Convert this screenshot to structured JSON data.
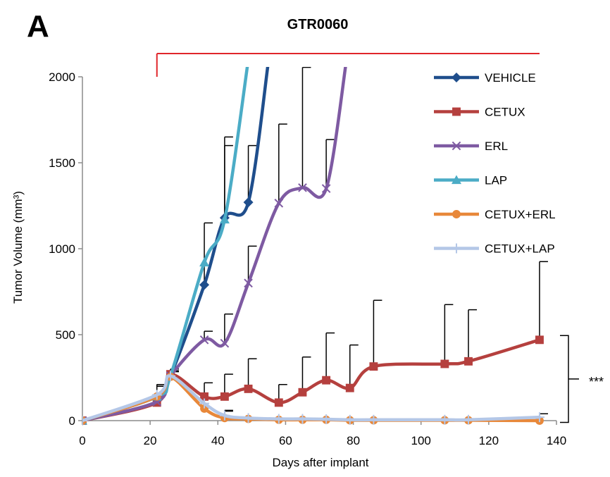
{
  "panel_letter": "A",
  "chart_data": {
    "type": "line",
    "title": "GTR0060",
    "xlabel": "Days after  implant",
    "ylabel": "Tumor Volume (mm³)",
    "xlim": [
      0,
      140
    ],
    "ylim": [
      0,
      2000
    ],
    "xticks": [
      0,
      20,
      40,
      60,
      80,
      100,
      120,
      140
    ],
    "yticks": [
      0,
      500,
      1000,
      1500,
      2000
    ],
    "grid": false,
    "legend_position": "top-right",
    "treatment_bar": {
      "x_start": 22,
      "x_end": 135,
      "color": "#e0262b"
    },
    "significance_label": "***",
    "series": [
      {
        "name": "VEHICLE",
        "color": "#1f4e8c",
        "marker": "diamond",
        "x": [
          0,
          22,
          26,
          36,
          42,
          49,
          55
        ],
        "y": [
          0,
          140,
          260,
          790,
          1180,
          1270,
          2100
        ],
        "err_up": [
          null,
          60,
          30,
          360,
          470,
          330,
          null
        ]
      },
      {
        "name": "CETUX",
        "color": "#b5403e",
        "marker": "square",
        "x": [
          0,
          22,
          26,
          36,
          42,
          49,
          58,
          65,
          72,
          79,
          86,
          107,
          114,
          135
        ],
        "y": [
          0,
          105,
          270,
          140,
          140,
          185,
          105,
          165,
          235,
          190,
          315,
          330,
          345,
          470
        ],
        "err_up": [
          null,
          105,
          30,
          80,
          130,
          175,
          105,
          205,
          275,
          250,
          385,
          345,
          300,
          455
        ]
      },
      {
        "name": "ERL",
        "color": "#7e5aa2",
        "marker": "x",
        "x": [
          0,
          22,
          26,
          36,
          42,
          49,
          58,
          65,
          72,
          78
        ],
        "y": [
          0,
          110,
          260,
          470,
          450,
          800,
          1265,
          1355,
          1350,
          2100
        ],
        "err_up": [
          null,
          90,
          30,
          50,
          170,
          215,
          460,
          700,
          285,
          null
        ]
      },
      {
        "name": "LAP",
        "color": "#4bacc6",
        "marker": "triangle",
        "x": [
          0,
          22,
          26,
          36,
          42,
          49
        ],
        "y": [
          0,
          140,
          260,
          920,
          1170,
          2100
        ],
        "err_up": [
          null,
          60,
          30,
          0,
          430,
          null
        ]
      },
      {
        "name": "CETUX+ERL",
        "color": "#e8883a",
        "marker": "circle",
        "x": [
          0,
          22,
          26,
          36,
          42,
          49,
          58,
          65,
          72,
          79,
          86,
          107,
          114,
          135
        ],
        "y": [
          0,
          140,
          255,
          70,
          15,
          10,
          5,
          5,
          5,
          2,
          2,
          2,
          2,
          0
        ],
        "err_up": [
          null,
          70,
          30,
          0,
          40,
          0,
          0,
          0,
          0,
          0,
          0,
          0,
          0,
          0
        ]
      },
      {
        "name": "CETUX+LAP",
        "color": "#b4c7e7",
        "marker": "plus",
        "x": [
          0,
          22,
          26,
          36,
          42,
          49,
          58,
          65,
          72,
          79,
          86,
          107,
          114,
          135
        ],
        "y": [
          0,
          150,
          260,
          100,
          30,
          15,
          10,
          10,
          8,
          5,
          5,
          5,
          5,
          20
        ],
        "err_up": [
          null,
          60,
          25,
          0,
          30,
          0,
          0,
          0,
          0,
          0,
          0,
          0,
          0,
          20
        ]
      }
    ]
  }
}
